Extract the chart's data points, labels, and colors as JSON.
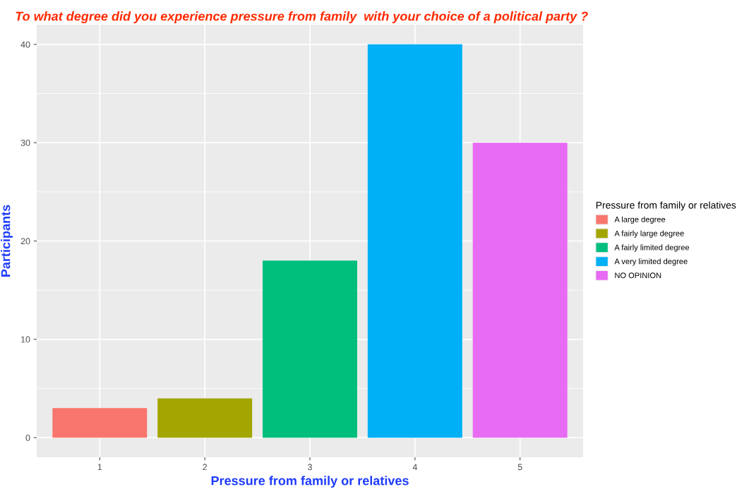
{
  "chart_data": {
    "type": "bar",
    "title": "To what degree did you experience pressure from family  with your choice of a political party ?",
    "xlabel": "Pressure from family or relatives",
    "ylabel": "Participants",
    "legend_title": "Pressure from family or relatives",
    "categories": [
      "1",
      "2",
      "3",
      "4",
      "5"
    ],
    "series": [
      {
        "name": "A large degree",
        "color": "#f8766d",
        "values": [
          3,
          null,
          null,
          null,
          null
        ]
      },
      {
        "name": "A fairly large degree",
        "color": "#a3a500",
        "values": [
          null,
          4,
          null,
          null,
          null
        ]
      },
      {
        "name": "A fairly limited degree",
        "color": "#00bf7d",
        "values": [
          null,
          null,
          18,
          null,
          null
        ]
      },
      {
        "name": "A very limited degree",
        "color": "#00b0f6",
        "values": [
          null,
          null,
          null,
          40,
          null
        ]
      },
      {
        "name": "NO OPINION",
        "color": "#e76bf3",
        "values": [
          null,
          null,
          null,
          null,
          30
        ]
      }
    ],
    "ylim": [
      -2,
      42
    ],
    "yticks": [
      0,
      10,
      20,
      30,
      40
    ],
    "grid": true,
    "legend": "right"
  }
}
